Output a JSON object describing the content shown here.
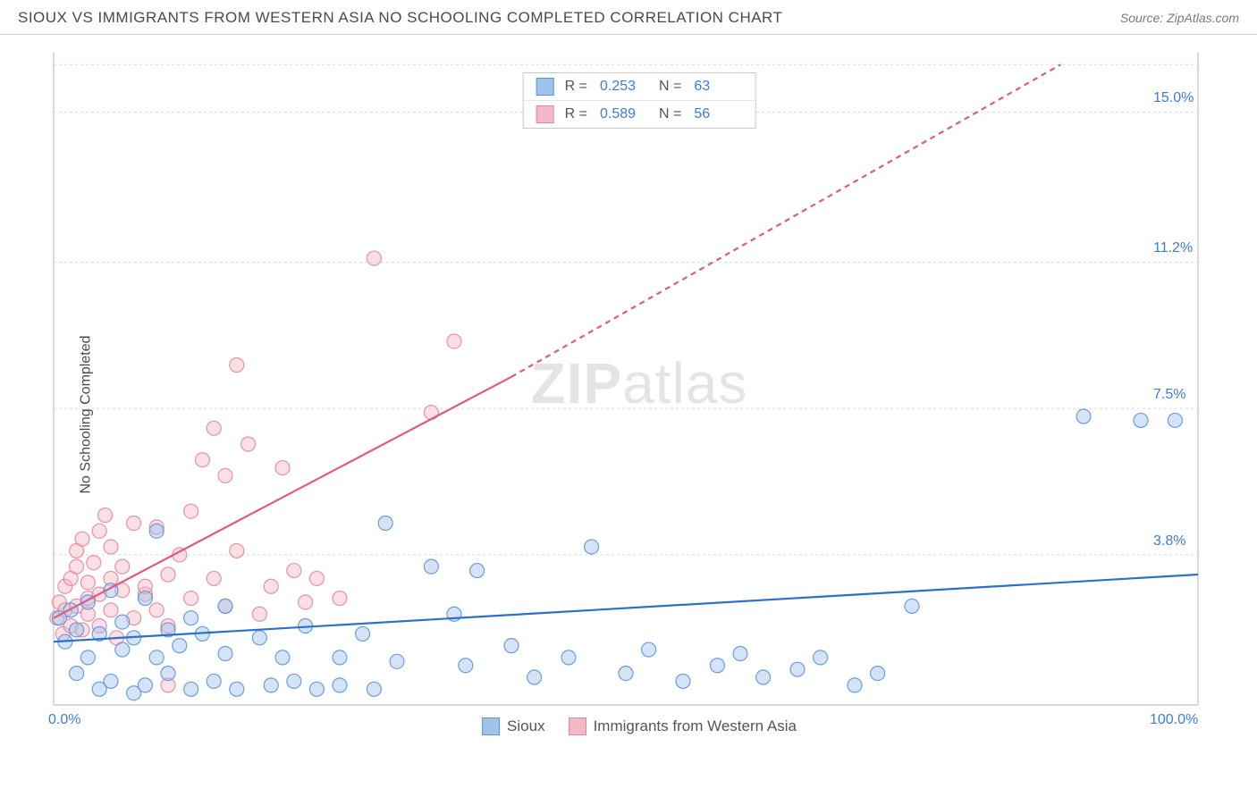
{
  "header": {
    "title": "SIOUX VS IMMIGRANTS FROM WESTERN ASIA NO SCHOOLING COMPLETED CORRELATION CHART",
    "source": "Source: ZipAtlas.com"
  },
  "ylabel": "No Schooling Completed",
  "watermark": {
    "bold": "ZIP",
    "rest": "atlas"
  },
  "chart": {
    "type": "scatter-correlation",
    "background_color": "#ffffff",
    "grid_color": "#d9d9d9",
    "grid_dash": "3,3",
    "axis_color": "#c0c0c0",
    "xlim": [
      0,
      100
    ],
    "ylim": [
      0,
      16.5
    ],
    "y_gridlines": [
      3.8,
      7.5,
      11.2,
      15.0,
      16.2
    ],
    "y_tick_labels": [
      "3.8%",
      "7.5%",
      "11.2%",
      "15.0%"
    ],
    "y_tick_values": [
      3.8,
      7.5,
      11.2,
      15.0
    ],
    "x_tick_labels": [
      "0.0%",
      "100.0%"
    ],
    "x_tick_values": [
      0,
      100
    ],
    "label_color": "#3b7dd8",
    "label_fontsize": 16,
    "point_radius": 8,
    "point_fill_opacity": 0.45,
    "point_stroke_opacity": 0.9,
    "point_stroke_width": 1.2,
    "line_width": 2.2,
    "series": [
      {
        "key": "sioux",
        "label": "Sioux",
        "color_fill": "#9fc4ec",
        "color_stroke": "#5a96d6",
        "line_color": "#2a71c7",
        "R": "0.253",
        "N": "63",
        "trend": {
          "x1": 0,
          "y1": 1.6,
          "x2": 100,
          "y2": 3.3,
          "dashed": false
        },
        "points": [
          [
            0.5,
            2.2
          ],
          [
            1,
            1.6
          ],
          [
            1.5,
            2.4
          ],
          [
            2,
            0.8
          ],
          [
            2,
            1.9
          ],
          [
            3,
            1.2
          ],
          [
            3,
            2.6
          ],
          [
            4,
            0.4
          ],
          [
            4,
            1.8
          ],
          [
            5,
            2.9
          ],
          [
            5,
            0.6
          ],
          [
            6,
            1.4
          ],
          [
            6,
            2.1
          ],
          [
            7,
            0.3
          ],
          [
            7,
            1.7
          ],
          [
            8,
            2.7
          ],
          [
            8,
            0.5
          ],
          [
            9,
            1.2
          ],
          [
            9,
            4.4
          ],
          [
            10,
            1.9
          ],
          [
            10,
            0.8
          ],
          [
            11,
            1.5
          ],
          [
            12,
            2.2
          ],
          [
            12,
            0.4
          ],
          [
            13,
            1.8
          ],
          [
            14,
            0.6
          ],
          [
            15,
            1.3
          ],
          [
            15,
            2.5
          ],
          [
            16,
            0.4
          ],
          [
            18,
            1.7
          ],
          [
            19,
            0.5
          ],
          [
            20,
            1.2
          ],
          [
            21,
            0.6
          ],
          [
            22,
            2.0
          ],
          [
            23,
            0.4
          ],
          [
            25,
            1.2
          ],
          [
            25,
            0.5
          ],
          [
            27,
            1.8
          ],
          [
            28,
            0.4
          ],
          [
            29,
            4.6
          ],
          [
            30,
            1.1
          ],
          [
            33,
            3.5
          ],
          [
            35,
            2.3
          ],
          [
            36,
            1.0
          ],
          [
            37,
            3.4
          ],
          [
            40,
            1.5
          ],
          [
            42,
            0.7
          ],
          [
            45,
            1.2
          ],
          [
            47,
            4.0
          ],
          [
            50,
            0.8
          ],
          [
            52,
            1.4
          ],
          [
            55,
            0.6
          ],
          [
            58,
            1.0
          ],
          [
            60,
            1.3
          ],
          [
            62,
            0.7
          ],
          [
            65,
            0.9
          ],
          [
            67,
            1.2
          ],
          [
            70,
            0.5
          ],
          [
            72,
            0.8
          ],
          [
            75,
            2.5
          ],
          [
            90,
            7.3
          ],
          [
            95,
            7.2
          ],
          [
            98,
            7.2
          ]
        ]
      },
      {
        "key": "immigrants",
        "label": "Immigrants from Western Asia",
        "color_fill": "#f4b9c6",
        "color_stroke": "#e287a0",
        "line_color": "#e15a7d",
        "R": "0.589",
        "N": "56",
        "trend": {
          "x1": 0,
          "y1": 2.2,
          "x2": 40,
          "y2": 8.3,
          "dashed": false
        },
        "trend_ext": {
          "x1": 40,
          "y1": 8.3,
          "x2": 88,
          "y2": 16.2,
          "dashed": true
        },
        "points": [
          [
            0.3,
            2.2
          ],
          [
            0.5,
            2.6
          ],
          [
            0.8,
            1.8
          ],
          [
            1,
            2.4
          ],
          [
            1,
            3.0
          ],
          [
            1.5,
            2.0
          ],
          [
            1.5,
            3.2
          ],
          [
            2,
            2.5
          ],
          [
            2,
            3.5
          ],
          [
            2,
            3.9
          ],
          [
            2.5,
            1.9
          ],
          [
            2.5,
            4.2
          ],
          [
            3,
            2.3
          ],
          [
            3,
            2.7
          ],
          [
            3,
            3.1
          ],
          [
            3.5,
            3.6
          ],
          [
            4,
            2.0
          ],
          [
            4,
            2.8
          ],
          [
            4,
            4.4
          ],
          [
            4.5,
            4.8
          ],
          [
            5,
            2.4
          ],
          [
            5,
            3.2
          ],
          [
            5,
            4.0
          ],
          [
            5.5,
            1.7
          ],
          [
            6,
            3.5
          ],
          [
            6,
            2.9
          ],
          [
            7,
            2.2
          ],
          [
            7,
            4.6
          ],
          [
            8,
            2.8
          ],
          [
            8,
            3.0
          ],
          [
            9,
            4.5
          ],
          [
            9,
            2.4
          ],
          [
            10,
            3.3
          ],
          [
            10,
            2.0
          ],
          [
            11,
            3.8
          ],
          [
            12,
            2.7
          ],
          [
            12,
            4.9
          ],
          [
            13,
            6.2
          ],
          [
            14,
            3.2
          ],
          [
            14,
            7.0
          ],
          [
            15,
            2.5
          ],
          [
            15,
            5.8
          ],
          [
            16,
            3.9
          ],
          [
            16,
            8.6
          ],
          [
            17,
            6.6
          ],
          [
            18,
            2.3
          ],
          [
            19,
            3.0
          ],
          [
            20,
            6.0
          ],
          [
            21,
            3.4
          ],
          [
            22,
            2.6
          ],
          [
            23,
            3.2
          ],
          [
            25,
            2.7
          ],
          [
            28,
            11.3
          ],
          [
            33,
            7.4
          ],
          [
            35,
            9.2
          ],
          [
            10,
            0.5
          ]
        ]
      }
    ]
  },
  "legend_top": {
    "r_label": "R =",
    "n_label": "N ="
  },
  "legend_bottom": {
    "items": [
      "Sioux",
      "Immigrants from Western Asia"
    ]
  }
}
